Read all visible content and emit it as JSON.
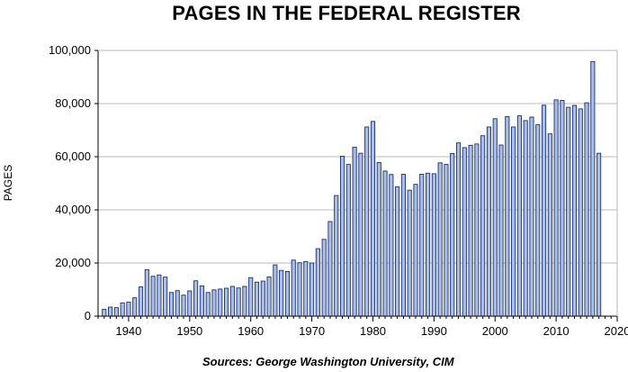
{
  "chart_data": {
    "type": "bar",
    "title": "PAGES IN THE FEDERAL REGISTER",
    "xlabel": "",
    "ylabel": "PAGES",
    "source": "Sources: George Washington University, CIM",
    "xlim": [
      1935,
      2020
    ],
    "ylim": [
      0,
      100000
    ],
    "x_ticks": [
      1940,
      1950,
      1960,
      1970,
      1980,
      1990,
      2000,
      2010,
      2020
    ],
    "y_ticks": [
      0,
      20000,
      40000,
      60000,
      80000,
      100000
    ],
    "y_tick_labels": [
      "0",
      "20,000",
      "40,000",
      "60,000",
      "80,000",
      "100,000"
    ],
    "grid": true,
    "legend": "none",
    "colors": {
      "bar_fill": "#a9bfe8",
      "bar_stroke": "#1c2f6e",
      "grid": "#b8b8b8",
      "axis": "#000000"
    },
    "categories": [
      1936,
      1937,
      1938,
      1939,
      1940,
      1941,
      1942,
      1943,
      1944,
      1945,
      1946,
      1947,
      1948,
      1949,
      1950,
      1951,
      1952,
      1953,
      1954,
      1955,
      1956,
      1957,
      1958,
      1959,
      1960,
      1961,
      1962,
      1963,
      1964,
      1965,
      1966,
      1967,
      1968,
      1969,
      1970,
      1971,
      1972,
      1973,
      1974,
      1975,
      1976,
      1977,
      1978,
      1979,
      1980,
      1981,
      1982,
      1983,
      1984,
      1985,
      1986,
      1987,
      1988,
      1989,
      1990,
      1991,
      1992,
      1993,
      1994,
      1995,
      1996,
      1997,
      1998,
      1999,
      2000,
      2001,
      2002,
      2003,
      2004,
      2005,
      2006,
      2007,
      2008,
      2009,
      2010,
      2011,
      2012,
      2013,
      2014,
      2015,
      2016,
      2017
    ],
    "values": [
      2600,
      3400,
      3200,
      5000,
      5300,
      6900,
      11000,
      17500,
      15000,
      15500,
      14700,
      8900,
      9600,
      7900,
      9500,
      13300,
      11400,
      8900,
      9900,
      10200,
      10500,
      11200,
      10600,
      11200,
      14500,
      12800,
      13200,
      14800,
      19300,
      17200,
      16800,
      21100,
      20100,
      20500,
      20000,
      25400,
      28900,
      35600,
      45400,
      60200,
      57100,
      63600,
      61300,
      71200,
      73300,
      57800,
      54600,
      53300,
      48700,
      53400,
      47400,
      49600,
      53400,
      53800,
      53600,
      57700,
      57100,
      61200,
      65200,
      63400,
      64300,
      64800,
      67900,
      71200,
      74300,
      64400,
      75100,
      71200,
      75400,
      73600,
      74900,
      72100,
      79400,
      68600,
      81400,
      81200,
      78600,
      79300,
      78000,
      80300,
      95800,
      61300
    ]
  }
}
